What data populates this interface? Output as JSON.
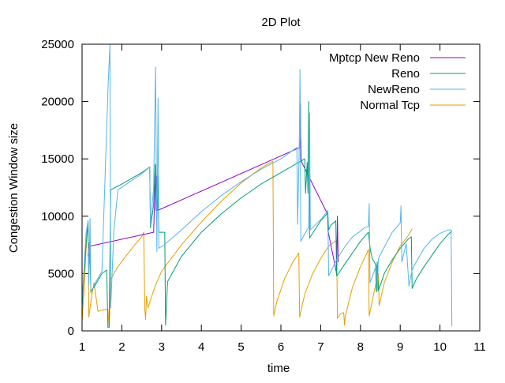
{
  "chart_data": {
    "type": "line",
    "title": "2D Plot",
    "xlabel": "time",
    "ylabel": "Congestion Window size",
    "xlim": [
      1,
      11
    ],
    "ylim": [
      0,
      25000
    ],
    "x_ticks": [
      1,
      2,
      3,
      4,
      5,
      6,
      7,
      8,
      9,
      10,
      11
    ],
    "y_ticks": [
      0,
      5000,
      10000,
      15000,
      20000,
      25000
    ],
    "grid": false,
    "legend_position": "top-right",
    "series": [
      {
        "name": "Mptcp New Reno",
        "color": "#9400d3",
        "points": [
          [
            1.15,
            6500
          ],
          [
            1.17,
            7400
          ],
          [
            1.19,
            7800
          ],
          [
            1.19,
            6300
          ],
          [
            1.21,
            7400
          ],
          [
            2.8,
            8600
          ],
          [
            2.82,
            11000
          ],
          [
            2.84,
            14500
          ],
          [
            2.86,
            10500
          ],
          [
            2.88,
            13500
          ],
          [
            2.9,
            10500
          ],
          [
            6.48,
            16000
          ],
          [
            6.49,
            19800
          ],
          [
            6.5,
            14800
          ],
          [
            6.5,
            16700
          ],
          [
            6.51,
            14800
          ],
          [
            7.17,
            10200
          ],
          [
            7.18,
            8800
          ],
          [
            7.4,
            5000
          ],
          [
            7.42,
            10000
          ],
          [
            7.44,
            6000
          ]
        ]
      },
      {
        "name": "Reno",
        "color": "#009e73",
        "points": [
          [
            1.0,
            2000
          ],
          [
            1.05,
            5000
          ],
          [
            1.1,
            7500
          ],
          [
            1.15,
            9600
          ],
          [
            1.17,
            5500
          ],
          [
            1.2,
            6500
          ],
          [
            1.22,
            3500
          ],
          [
            1.3,
            3800
          ],
          [
            1.5,
            5000
          ],
          [
            1.62,
            5300
          ],
          [
            1.65,
            300
          ],
          [
            1.68,
            300
          ],
          [
            1.72,
            12300
          ],
          [
            2.0,
            12800
          ],
          [
            2.5,
            13800
          ],
          [
            2.7,
            14300
          ],
          [
            2.72,
            9000
          ],
          [
            2.8,
            11000
          ],
          [
            2.84,
            14500
          ],
          [
            2.87,
            10500
          ],
          [
            2.9,
            13500
          ],
          [
            2.93,
            8600
          ],
          [
            3.0,
            8600
          ],
          [
            3.08,
            8600
          ],
          [
            3.1,
            500
          ],
          [
            3.15,
            4300
          ],
          [
            3.5,
            6500
          ],
          [
            4.0,
            8600
          ],
          [
            4.5,
            10200
          ],
          [
            5.0,
            11600
          ],
          [
            5.5,
            12800
          ],
          [
            6.0,
            13800
          ],
          [
            6.5,
            14800
          ],
          [
            6.6,
            15000
          ],
          [
            6.62,
            12000
          ],
          [
            6.66,
            14700
          ],
          [
            6.68,
            12000
          ],
          [
            6.7,
            20000
          ],
          [
            6.72,
            8100
          ],
          [
            7.0,
            9600
          ],
          [
            7.18,
            10300
          ],
          [
            7.2,
            8800
          ],
          [
            7.25,
            9200
          ],
          [
            7.38,
            9600
          ],
          [
            7.4,
            4800
          ],
          [
            7.45,
            5000
          ],
          [
            7.6,
            5800
          ],
          [
            7.8,
            6800
          ],
          [
            8.0,
            7800
          ],
          [
            8.2,
            8600
          ],
          [
            8.25,
            7000
          ],
          [
            8.3,
            6300
          ],
          [
            8.38,
            5800
          ],
          [
            8.4,
            3400
          ],
          [
            8.42,
            6000
          ],
          [
            8.45,
            3500
          ],
          [
            8.6,
            5000
          ],
          [
            8.8,
            6200
          ],
          [
            9.0,
            7200
          ],
          [
            9.2,
            8000
          ],
          [
            9.28,
            8200
          ],
          [
            9.3,
            3700
          ],
          [
            9.4,
            4500
          ],
          [
            9.6,
            5600
          ],
          [
            9.8,
            6600
          ],
          [
            10.0,
            7600
          ],
          [
            10.2,
            8400
          ],
          [
            10.3,
            8700
          ]
        ]
      },
      {
        "name": "NewReno",
        "color": "#56b4e9",
        "points": [
          [
            1.0,
            2500
          ],
          [
            1.05,
            5500
          ],
          [
            1.1,
            8500
          ],
          [
            1.15,
            9600
          ],
          [
            1.17,
            4000
          ],
          [
            1.2,
            9800
          ],
          [
            1.22,
            3300
          ],
          [
            1.35,
            4300
          ],
          [
            1.5,
            5200
          ],
          [
            1.65,
            21000
          ],
          [
            1.7,
            25000
          ],
          [
            1.72,
            2000
          ],
          [
            1.8,
            8700
          ],
          [
            1.9,
            12300
          ],
          [
            2.2,
            13000
          ],
          [
            2.5,
            13700
          ],
          [
            2.7,
            14300
          ],
          [
            2.72,
            9200
          ],
          [
            2.8,
            12500
          ],
          [
            2.85,
            23000
          ],
          [
            2.88,
            6900
          ],
          [
            2.91,
            20300
          ],
          [
            2.93,
            7200
          ],
          [
            3.1,
            7600
          ],
          [
            3.5,
            8800
          ],
          [
            4.0,
            10400
          ],
          [
            4.5,
            11800
          ],
          [
            5.0,
            13000
          ],
          [
            5.5,
            14100
          ],
          [
            6.0,
            15000
          ],
          [
            6.4,
            16000
          ],
          [
            6.42,
            9300
          ],
          [
            6.46,
            16000
          ],
          [
            6.48,
            22800
          ],
          [
            6.5,
            7800
          ],
          [
            6.7,
            9100
          ],
          [
            6.72,
            19000
          ],
          [
            6.74,
            8800
          ],
          [
            7.0,
            9700
          ],
          [
            7.18,
            10500
          ],
          [
            7.2,
            4800
          ],
          [
            7.4,
            6200
          ],
          [
            7.6,
            7300
          ],
          [
            7.8,
            8200
          ],
          [
            8.0,
            8700
          ],
          [
            8.1,
            9000
          ],
          [
            8.2,
            9100
          ],
          [
            8.22,
            11100
          ],
          [
            8.24,
            4200
          ],
          [
            8.4,
            5700
          ],
          [
            8.42,
            3500
          ],
          [
            8.45,
            6300
          ],
          [
            8.6,
            7300
          ],
          [
            8.8,
            8600
          ],
          [
            9.0,
            9400
          ],
          [
            9.02,
            10900
          ],
          [
            9.04,
            6000
          ],
          [
            9.15,
            7600
          ],
          [
            9.22,
            3900
          ],
          [
            9.3,
            5300
          ],
          [
            9.4,
            6000
          ],
          [
            9.6,
            7200
          ],
          [
            9.8,
            8000
          ],
          [
            10.0,
            8500
          ],
          [
            10.2,
            8800
          ],
          [
            10.28,
            8800
          ],
          [
            10.3,
            400
          ]
        ]
      },
      {
        "name": "Normal Tcp",
        "color": "#e69f00",
        "points": [
          [
            1.0,
            800
          ],
          [
            1.05,
            3500
          ],
          [
            1.1,
            7000
          ],
          [
            1.15,
            9600
          ],
          [
            1.17,
            1200
          ],
          [
            1.22,
            2500
          ],
          [
            1.3,
            4200
          ],
          [
            1.4,
            1700
          ],
          [
            1.5,
            1800
          ],
          [
            1.65,
            1900
          ],
          [
            1.68,
            400
          ],
          [
            1.72,
            4500
          ],
          [
            1.9,
            5600
          ],
          [
            2.1,
            6500
          ],
          [
            2.3,
            7400
          ],
          [
            2.5,
            8200
          ],
          [
            2.55,
            8600
          ],
          [
            2.58,
            1800
          ],
          [
            2.6,
            1000
          ],
          [
            2.62,
            3000
          ],
          [
            2.66,
            2000
          ],
          [
            2.7,
            2500
          ],
          [
            2.85,
            4000
          ],
          [
            3.0,
            5200
          ],
          [
            3.5,
            7500
          ],
          [
            4.0,
            9500
          ],
          [
            4.5,
            11300
          ],
          [
            5.0,
            12900
          ],
          [
            5.5,
            14200
          ],
          [
            5.8,
            14800
          ],
          [
            5.82,
            1300
          ],
          [
            5.9,
            2600
          ],
          [
            6.1,
            4600
          ],
          [
            6.3,
            6000
          ],
          [
            6.45,
            6800
          ],
          [
            6.47,
            1200
          ],
          [
            6.6,
            3200
          ],
          [
            6.8,
            5000
          ],
          [
            7.0,
            6300
          ],
          [
            7.2,
            7400
          ],
          [
            7.4,
            7900
          ],
          [
            7.42,
            1100
          ],
          [
            7.5,
            1500
          ],
          [
            7.58,
            1600
          ],
          [
            7.6,
            500
          ],
          [
            7.62,
            1300
          ],
          [
            7.8,
            3800
          ],
          [
            8.0,
            5600
          ],
          [
            8.15,
            6700
          ],
          [
            8.2,
            7100
          ],
          [
            8.22,
            1300
          ],
          [
            8.35,
            3500
          ],
          [
            8.45,
            5000
          ],
          [
            8.47,
            2200
          ],
          [
            8.6,
            4200
          ],
          [
            8.8,
            6000
          ],
          [
            9.0,
            7400
          ],
          [
            9.2,
            8300
          ],
          [
            9.3,
            8900
          ]
        ]
      }
    ]
  }
}
